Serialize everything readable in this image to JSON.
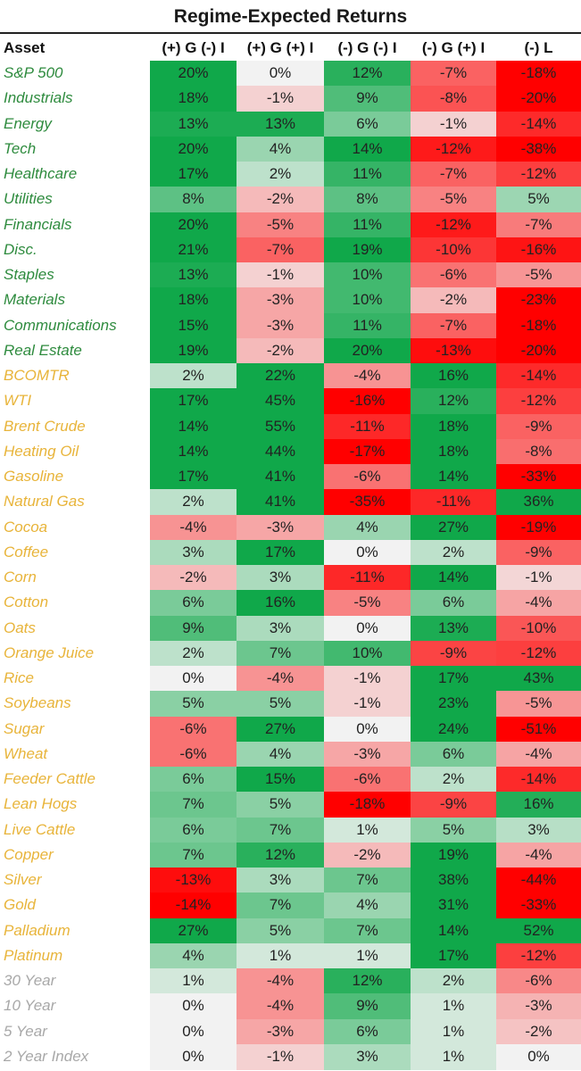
{
  "title": "Regime-Expected Returns",
  "header": {
    "asset_label": "Asset",
    "columns": [
      "(+) G (-) I",
      "(+) G (+) I",
      "(-) G (-) I",
      "(-) G (+) I",
      "(-) L"
    ]
  },
  "colors": {
    "equity_label": "#2e8b3e",
    "commodity_label": "#e8b43a",
    "rates_label": "#a8a8a8",
    "positive_max": "#10a84a",
    "negative_max": "#ff0000",
    "neutral": "#f2f2f2"
  },
  "chart_data": {
    "type": "heatmap",
    "title": "Regime-Expected Returns",
    "columns": [
      "(+) G (-) I",
      "(+) G (+) I",
      "(-) G (-) I",
      "(-) G (+) I",
      "(-) L"
    ],
    "rows": [
      {
        "asset": "S&P 500",
        "group": "equity",
        "values": [
          "20%",
          "0%",
          "12%",
          "-7%",
          "-18%"
        ]
      },
      {
        "asset": "Industrials",
        "group": "equity",
        "values": [
          "18%",
          "-1%",
          "9%",
          "-8%",
          "-20%"
        ]
      },
      {
        "asset": "Energy",
        "group": "equity",
        "values": [
          "13%",
          "13%",
          "6%",
          "-1%",
          "-14%"
        ]
      },
      {
        "asset": "Tech",
        "group": "equity",
        "values": [
          "20%",
          "4%",
          "14%",
          "-12%",
          "-38%"
        ]
      },
      {
        "asset": "Healthcare",
        "group": "equity",
        "values": [
          "17%",
          "2%",
          "11%",
          "-7%",
          "-12%"
        ]
      },
      {
        "asset": "Utilities",
        "group": "equity",
        "values": [
          "8%",
          "-2%",
          "8%",
          "-5%",
          "5%"
        ]
      },
      {
        "asset": "Financials",
        "group": "equity",
        "values": [
          "20%",
          "-5%",
          "11%",
          "-12%",
          "-7%"
        ]
      },
      {
        "asset": "Disc.",
        "group": "equity",
        "values": [
          "21%",
          "-7%",
          "19%",
          "-10%",
          "-16%"
        ]
      },
      {
        "asset": "Staples",
        "group": "equity",
        "values": [
          "13%",
          "-1%",
          "10%",
          "-6%",
          "-5%"
        ]
      },
      {
        "asset": "Materials",
        "group": "equity",
        "values": [
          "18%",
          "-3%",
          "10%",
          "-2%",
          "-23%"
        ]
      },
      {
        "asset": "Communications",
        "group": "equity",
        "values": [
          "15%",
          "-3%",
          "11%",
          "-7%",
          "-18%"
        ]
      },
      {
        "asset": "Real Estate",
        "group": "equity",
        "values": [
          "19%",
          "-2%",
          "20%",
          "-13%",
          "-20%"
        ]
      },
      {
        "asset": "BCOMTR",
        "group": "commodity",
        "values": [
          "2%",
          "22%",
          "-4%",
          "16%",
          "-14%"
        ]
      },
      {
        "asset": "WTI",
        "group": "commodity",
        "values": [
          "17%",
          "45%",
          "-16%",
          "12%",
          "-12%"
        ]
      },
      {
        "asset": "Brent Crude",
        "group": "commodity",
        "values": [
          "14%",
          "55%",
          "-11%",
          "18%",
          "-9%"
        ]
      },
      {
        "asset": "Heating Oil",
        "group": "commodity",
        "values": [
          "14%",
          "44%",
          "-17%",
          "18%",
          "-8%"
        ]
      },
      {
        "asset": "Gasoline",
        "group": "commodity",
        "values": [
          "17%",
          "41%",
          "-6%",
          "14%",
          "-33%"
        ]
      },
      {
        "asset": "Natural Gas",
        "group": "commodity",
        "values": [
          "2%",
          "41%",
          "-35%",
          "-11%",
          "36%"
        ]
      },
      {
        "asset": "Cocoa",
        "group": "commodity",
        "values": [
          "-4%",
          "-3%",
          "4%",
          "27%",
          "-19%"
        ]
      },
      {
        "asset": "Coffee",
        "group": "commodity",
        "values": [
          "3%",
          "17%",
          "0%",
          "2%",
          "-9%"
        ]
      },
      {
        "asset": "Corn",
        "group": "commodity",
        "values": [
          "-2%",
          "3%",
          "-11%",
          "14%",
          "-1%"
        ]
      },
      {
        "asset": "Cotton",
        "group": "commodity",
        "values": [
          "6%",
          "16%",
          "-5%",
          "6%",
          "-4%"
        ]
      },
      {
        "asset": "Oats",
        "group": "commodity",
        "values": [
          "9%",
          "3%",
          "0%",
          "13%",
          "-10%"
        ]
      },
      {
        "asset": "Orange Juice",
        "group": "commodity",
        "values": [
          "2%",
          "7%",
          "10%",
          "-9%",
          "-12%"
        ]
      },
      {
        "asset": "Rice",
        "group": "commodity",
        "values": [
          "0%",
          "-4%",
          "-1%",
          "17%",
          "43%"
        ]
      },
      {
        "asset": "Soybeans",
        "group": "commodity",
        "values": [
          "5%",
          "5%",
          "-1%",
          "23%",
          "-5%"
        ]
      },
      {
        "asset": "Sugar",
        "group": "commodity",
        "values": [
          "-6%",
          "27%",
          "0%",
          "24%",
          "-51%"
        ]
      },
      {
        "asset": "Wheat",
        "group": "commodity",
        "values": [
          "-6%",
          "4%",
          "-3%",
          "6%",
          "-4%"
        ]
      },
      {
        "asset": "Feeder Cattle",
        "group": "commodity",
        "values": [
          "6%",
          "15%",
          "-6%",
          "2%",
          "-14%"
        ]
      },
      {
        "asset": "Lean Hogs",
        "group": "commodity",
        "values": [
          "7%",
          "5%",
          "-18%",
          "-9%",
          "16%"
        ]
      },
      {
        "asset": "Live Cattle",
        "group": "commodity",
        "values": [
          "6%",
          "7%",
          "1%",
          "5%",
          "3%"
        ]
      },
      {
        "asset": "Copper",
        "group": "commodity",
        "values": [
          "7%",
          "12%",
          "-2%",
          "19%",
          "-4%"
        ]
      },
      {
        "asset": "Silver",
        "group": "commodity",
        "values": [
          "-13%",
          "3%",
          "7%",
          "38%",
          "-44%"
        ]
      },
      {
        "asset": "Gold",
        "group": "commodity",
        "values": [
          "-14%",
          "7%",
          "4%",
          "31%",
          "-33%"
        ]
      },
      {
        "asset": "Palladium",
        "group": "commodity",
        "values": [
          "27%",
          "5%",
          "7%",
          "14%",
          "52%"
        ]
      },
      {
        "asset": "Platinum",
        "group": "commodity",
        "values": [
          "4%",
          "1%",
          "1%",
          "17%",
          "-12%"
        ]
      },
      {
        "asset": "30 Year",
        "group": "rates",
        "values": [
          "1%",
          "-4%",
          "12%",
          "2%",
          "-6%"
        ]
      },
      {
        "asset": "10 Year",
        "group": "rates",
        "values": [
          "0%",
          "-4%",
          "9%",
          "1%",
          "-3%"
        ]
      },
      {
        "asset": "5 Year",
        "group": "rates",
        "values": [
          "0%",
          "-3%",
          "6%",
          "1%",
          "-2%"
        ]
      },
      {
        "asset": "2 Year Index",
        "group": "rates",
        "values": [
          "0%",
          "-1%",
          "3%",
          "1%",
          "0%"
        ]
      }
    ]
  }
}
